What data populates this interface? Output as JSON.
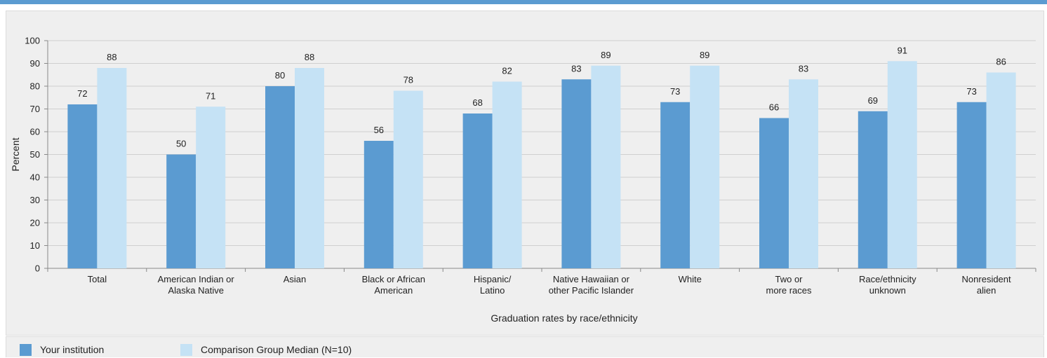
{
  "chart_data": {
    "type": "bar",
    "xlabel": "Graduation rates by race/ethnicity",
    "ylabel": "Percent",
    "ylim": [
      0,
      100
    ],
    "yticks": [
      0,
      10,
      20,
      30,
      40,
      50,
      60,
      70,
      80,
      90,
      100
    ],
    "grid": true,
    "legend_position": "bottom",
    "categories": [
      [
        "Total"
      ],
      [
        "American Indian or",
        "Alaska Native"
      ],
      [
        "Asian"
      ],
      [
        "Black or African",
        "American"
      ],
      [
        "Hispanic/",
        "Latino"
      ],
      [
        "Native Hawaiian or",
        "other Pacific Islander"
      ],
      [
        "White"
      ],
      [
        "Two or",
        "more races"
      ],
      [
        "Race/ethnicity",
        "unknown"
      ],
      [
        "Nonresident",
        "alien"
      ]
    ],
    "series": [
      {
        "name": "Your institution",
        "color": "#5b9bd1",
        "values": [
          72,
          50,
          80,
          56,
          68,
          83,
          73,
          66,
          69,
          73
        ]
      },
      {
        "name": "Comparison Group Median (N=10)",
        "color": "#c5e2f5",
        "values": [
          88,
          71,
          88,
          78,
          82,
          89,
          89,
          83,
          91,
          86
        ]
      }
    ]
  }
}
